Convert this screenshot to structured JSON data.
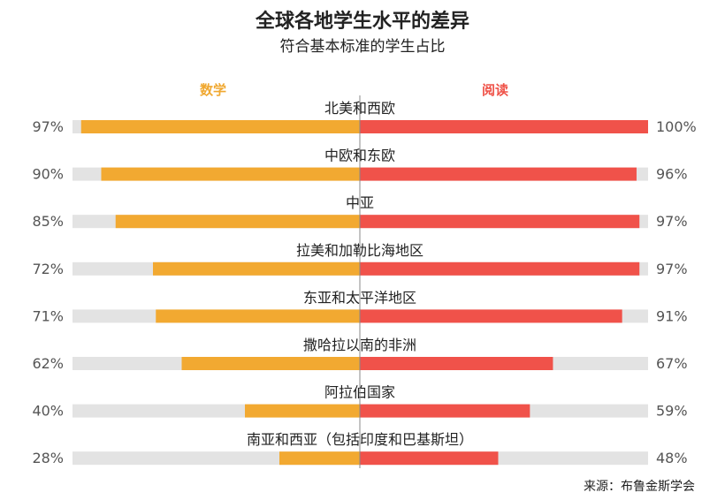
{
  "title": "全球各地学生水平的差异",
  "subtitle": "符合基本标准的学生占比",
  "legend": {
    "math": "数学",
    "reading": "阅读"
  },
  "source": "来源：布鲁金斯学会",
  "colors": {
    "math": "#f2a931",
    "reading": "#f0524a",
    "track": "#e3e3e3",
    "axis": "#888888",
    "pct_text": "#555555"
  },
  "chart_data": {
    "type": "bar",
    "orientation": "horizontal-diverging",
    "title": "全球各地学生水平的差异",
    "subtitle": "符合基本标准的学生占比",
    "xlim": [
      0,
      100
    ],
    "categories": [
      "北美和西欧",
      "中欧和东欧",
      "中亚",
      "拉美和加勒比海地区",
      "东亚和太平洋地区",
      "撒哈拉以南的非洲",
      "阿拉伯国家",
      "南亚和西亚（包括印度和巴基斯坦）"
    ],
    "series": [
      {
        "name": "数学",
        "values": [
          97,
          90,
          85,
          72,
          71,
          62,
          40,
          28
        ]
      },
      {
        "name": "阅读",
        "values": [
          100,
          96,
          97,
          97,
          91,
          67,
          59,
          48
        ]
      }
    ],
    "math_labels": [
      "97%",
      "90%",
      "85%",
      "72%",
      "71%",
      "62%",
      "40%",
      "28%"
    ],
    "reading_labels": [
      "100%",
      "96%",
      "97%",
      "97%",
      "91%",
      "67%",
      "59%",
      "48%"
    ]
  }
}
